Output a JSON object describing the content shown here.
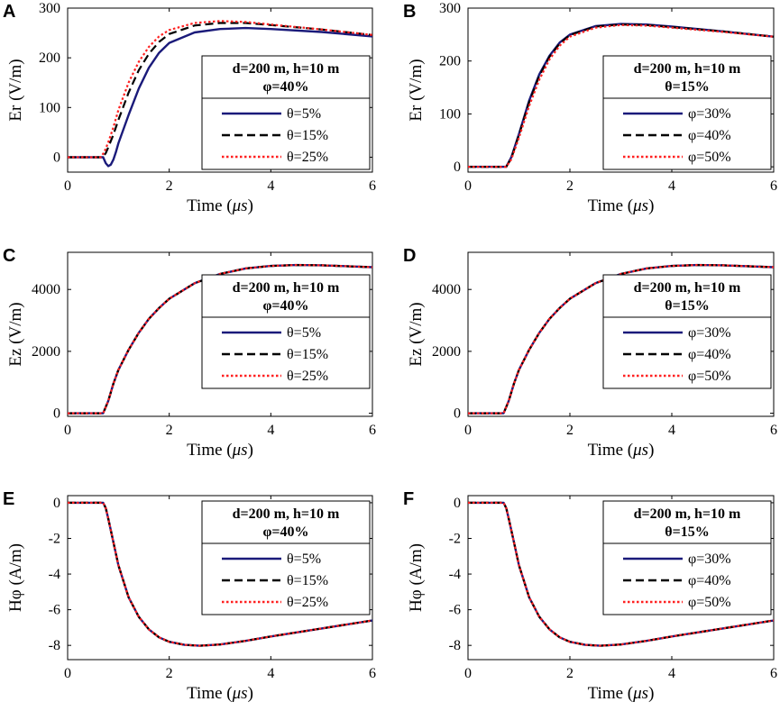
{
  "chart_data": [
    {
      "id": "A",
      "type": "line",
      "panel_label": "A",
      "xlabel_pre": "Time (",
      "xlabel_mu": "μs",
      "xlabel_post": ")",
      "ylabel": "Er (V/m)",
      "xlim": [
        0,
        6
      ],
      "ylim": [
        -30,
        300
      ],
      "xticks": [
        0,
        2,
        4,
        6
      ],
      "yticks": [
        0,
        100,
        200,
        300
      ],
      "legend": {
        "title1": "d=200 m, h=10 m",
        "title2": "φ=40%",
        "position": "right-middle"
      },
      "series": [
        {
          "name": "θ=5%",
          "color": "#1a1a7a",
          "dash": "solid",
          "x": [
            0,
            0.7,
            0.75,
            0.8,
            0.85,
            0.9,
            0.95,
            1.0,
            1.2,
            1.4,
            1.6,
            1.8,
            2.0,
            2.5,
            3.0,
            3.5,
            4.0,
            5.0,
            6.0
          ],
          "y": [
            0,
            0,
            -12,
            -18,
            -15,
            -5,
            10,
            28,
            85,
            138,
            180,
            210,
            230,
            251,
            258,
            260,
            258,
            252,
            243
          ]
        },
        {
          "name": "θ=15%",
          "color": "#000000",
          "dash": "dash",
          "x": [
            0,
            0.68,
            0.75,
            0.8,
            0.9,
            1.0,
            1.2,
            1.4,
            1.6,
            1.8,
            2.0,
            2.5,
            3.0,
            3.5,
            4.0,
            5.0,
            6.0
          ],
          "y": [
            0,
            0,
            8,
            20,
            45,
            75,
            130,
            175,
            208,
            232,
            248,
            265,
            270,
            270,
            266,
            257,
            246
          ]
        },
        {
          "name": "θ=25%",
          "color": "#ff2020",
          "dash": "dot",
          "x": [
            0,
            0.65,
            0.72,
            0.8,
            0.9,
            1.0,
            1.2,
            1.4,
            1.6,
            1.8,
            2.0,
            2.5,
            3.0,
            3.5,
            4.0,
            5.0,
            6.0
          ],
          "y": [
            0,
            0,
            10,
            30,
            60,
            95,
            150,
            192,
            222,
            243,
            256,
            270,
            274,
            272,
            267,
            257,
            246
          ]
        }
      ]
    },
    {
      "id": "B",
      "type": "line",
      "panel_label": "B",
      "xlabel_pre": "Time (",
      "xlabel_mu": "μs",
      "xlabel_post": ")",
      "ylabel": "Er (V/m)",
      "xlim": [
        0,
        6
      ],
      "ylim": [
        -10,
        300
      ],
      "xticks": [
        0,
        2,
        4,
        6
      ],
      "yticks": [
        0,
        100,
        200,
        300
      ],
      "legend": {
        "title1": "d=200 m, h=10 m",
        "title2": "θ=15%",
        "position": "right-middle"
      },
      "series": [
        {
          "name": "φ=30%",
          "color": "#1a1a7a",
          "dash": "solid",
          "x": [
            0,
            0.75,
            0.85,
            1.0,
            1.2,
            1.4,
            1.6,
            1.8,
            2.0,
            2.5,
            3.0,
            3.5,
            4.0,
            5.0,
            6.0
          ],
          "y": [
            0,
            0,
            18,
            62,
            125,
            175,
            210,
            235,
            250,
            266,
            270,
            269,
            265,
            256,
            246
          ]
        },
        {
          "name": "φ=40%",
          "color": "#000000",
          "dash": "dash",
          "x": [
            0,
            0.75,
            0.85,
            1.0,
            1.2,
            1.4,
            1.6,
            1.8,
            2.0,
            2.5,
            3.0,
            3.5,
            4.0,
            5.0,
            6.0
          ],
          "y": [
            0,
            0,
            16,
            60,
            122,
            172,
            208,
            233,
            249,
            265,
            269,
            268,
            264,
            256,
            246
          ]
        },
        {
          "name": "φ=50%",
          "color": "#ff2020",
          "dash": "dot",
          "x": [
            0,
            0.75,
            0.85,
            1.0,
            1.2,
            1.4,
            1.6,
            1.8,
            2.0,
            2.5,
            3.0,
            3.5,
            4.0,
            5.0,
            6.0
          ],
          "y": [
            0,
            0,
            14,
            55,
            115,
            165,
            203,
            229,
            246,
            263,
            268,
            267,
            263,
            255,
            246
          ]
        }
      ]
    },
    {
      "id": "C",
      "type": "line",
      "panel_label": "C",
      "xlabel_pre": "Time (",
      "xlabel_mu": "μs",
      "xlabel_post": ")",
      "ylabel": "Ez (V/m)",
      "xlim": [
        0,
        6
      ],
      "ylim": [
        -100,
        5200
      ],
      "xticks": [
        0,
        2,
        4,
        6
      ],
      "yticks": [
        0,
        2000,
        4000
      ],
      "legend": {
        "title1": "d=200 m, h=10 m",
        "title2": "φ=40%",
        "position": "right-middle"
      },
      "series": [
        {
          "name": "θ=5%",
          "color": "#1a1a7a",
          "dash": "solid",
          "x": [
            0,
            0.7,
            0.8,
            0.9,
            1.0,
            1.2,
            1.4,
            1.6,
            1.8,
            2.0,
            2.5,
            3.0,
            3.5,
            4.0,
            4.5,
            5.0,
            6.0
          ],
          "y": [
            0,
            0,
            400,
            950,
            1400,
            2050,
            2600,
            3050,
            3400,
            3700,
            4200,
            4500,
            4680,
            4760,
            4790,
            4780,
            4720
          ]
        },
        {
          "name": "θ=15%",
          "color": "#000000",
          "dash": "dash",
          "x": [
            0,
            0.7,
            0.8,
            0.9,
            1.0,
            1.2,
            1.4,
            1.6,
            1.8,
            2.0,
            2.5,
            3.0,
            3.5,
            4.0,
            4.5,
            5.0,
            6.0
          ],
          "y": [
            0,
            0,
            400,
            950,
            1400,
            2050,
            2600,
            3050,
            3400,
            3700,
            4200,
            4500,
            4680,
            4760,
            4790,
            4780,
            4720
          ]
        },
        {
          "name": "θ=25%",
          "color": "#ff2020",
          "dash": "dot",
          "x": [
            0,
            0.7,
            0.8,
            0.9,
            1.0,
            1.2,
            1.4,
            1.6,
            1.8,
            2.0,
            2.5,
            3.0,
            3.5,
            4.0,
            4.5,
            5.0,
            6.0
          ],
          "y": [
            0,
            0,
            400,
            950,
            1400,
            2050,
            2600,
            3050,
            3400,
            3700,
            4200,
            4500,
            4680,
            4760,
            4790,
            4780,
            4720
          ]
        }
      ]
    },
    {
      "id": "D",
      "type": "line",
      "panel_label": "D",
      "xlabel_pre": "Time (",
      "xlabel_mu": "μs",
      "xlabel_post": ")",
      "ylabel": "Ez (V/m)",
      "xlim": [
        0,
        6
      ],
      "ylim": [
        -100,
        5200
      ],
      "xticks": [
        0,
        2,
        4,
        6
      ],
      "yticks": [
        0,
        2000,
        4000
      ],
      "legend": {
        "title1": "d=200 m, h=10 m",
        "title2": "θ=15%",
        "position": "right-middle"
      },
      "series": [
        {
          "name": "φ=30%",
          "color": "#1a1a7a",
          "dash": "solid",
          "x": [
            0,
            0.7,
            0.8,
            0.9,
            1.0,
            1.2,
            1.4,
            1.6,
            1.8,
            2.0,
            2.5,
            3.0,
            3.5,
            4.0,
            4.5,
            5.0,
            6.0
          ],
          "y": [
            0,
            0,
            400,
            950,
            1400,
            2050,
            2600,
            3050,
            3400,
            3700,
            4200,
            4500,
            4680,
            4760,
            4790,
            4780,
            4720
          ]
        },
        {
          "name": "φ=40%",
          "color": "#000000",
          "dash": "dash",
          "x": [
            0,
            0.7,
            0.8,
            0.9,
            1.0,
            1.2,
            1.4,
            1.6,
            1.8,
            2.0,
            2.5,
            3.0,
            3.5,
            4.0,
            4.5,
            5.0,
            6.0
          ],
          "y": [
            0,
            0,
            400,
            950,
            1400,
            2050,
            2600,
            3050,
            3400,
            3700,
            4200,
            4500,
            4680,
            4760,
            4790,
            4780,
            4720
          ]
        },
        {
          "name": "φ=50%",
          "color": "#ff2020",
          "dash": "dot",
          "x": [
            0,
            0.7,
            0.8,
            0.9,
            1.0,
            1.2,
            1.4,
            1.6,
            1.8,
            2.0,
            2.5,
            3.0,
            3.5,
            4.0,
            4.5,
            5.0,
            6.0
          ],
          "y": [
            0,
            0,
            400,
            950,
            1400,
            2050,
            2600,
            3050,
            3400,
            3700,
            4200,
            4500,
            4680,
            4760,
            4790,
            4780,
            4720
          ]
        }
      ]
    },
    {
      "id": "E",
      "type": "line",
      "panel_label": "E",
      "xlabel_pre": "Time (",
      "xlabel_mu": "μs",
      "xlabel_post": ")",
      "ylabel": "Hφ (A/m)",
      "xlim": [
        0,
        6
      ],
      "ylim": [
        -8.8,
        0.4
      ],
      "xticks": [
        0,
        2,
        4,
        6
      ],
      "yticks": [
        0,
        -2,
        -4,
        -6,
        -8
      ],
      "legend": {
        "title1": "d=200 m, h=10 m",
        "title2": "φ=40%",
        "position": "right-top"
      },
      "series": [
        {
          "name": "θ=5%",
          "color": "#1a1a7a",
          "dash": "solid",
          "x": [
            0,
            0.7,
            0.75,
            0.8,
            0.9,
            1.0,
            1.2,
            1.4,
            1.6,
            1.8,
            2.0,
            2.3,
            2.6,
            3.0,
            3.5,
            4.0,
            5.0,
            6.0
          ],
          "y": [
            0,
            0,
            -0.3,
            -0.9,
            -2.2,
            -3.5,
            -5.3,
            -6.4,
            -7.1,
            -7.55,
            -7.8,
            -7.97,
            -8.02,
            -7.95,
            -7.75,
            -7.5,
            -7.05,
            -6.6
          ]
        },
        {
          "name": "θ=15%",
          "color": "#000000",
          "dash": "dash",
          "x": [
            0,
            0.7,
            0.75,
            0.8,
            0.9,
            1.0,
            1.2,
            1.4,
            1.6,
            1.8,
            2.0,
            2.3,
            2.6,
            3.0,
            3.5,
            4.0,
            5.0,
            6.0
          ],
          "y": [
            0,
            0,
            -0.3,
            -0.9,
            -2.2,
            -3.5,
            -5.3,
            -6.4,
            -7.1,
            -7.55,
            -7.8,
            -7.97,
            -8.02,
            -7.95,
            -7.75,
            -7.5,
            -7.05,
            -6.6
          ]
        },
        {
          "name": "θ=25%",
          "color": "#ff2020",
          "dash": "dot",
          "x": [
            0,
            0.7,
            0.75,
            0.8,
            0.9,
            1.0,
            1.2,
            1.4,
            1.6,
            1.8,
            2.0,
            2.3,
            2.6,
            3.0,
            3.5,
            4.0,
            5.0,
            6.0
          ],
          "y": [
            0,
            0,
            -0.3,
            -0.9,
            -2.2,
            -3.5,
            -5.3,
            -6.4,
            -7.1,
            -7.55,
            -7.8,
            -7.97,
            -8.02,
            -7.95,
            -7.75,
            -7.5,
            -7.05,
            -6.6
          ]
        }
      ]
    },
    {
      "id": "F",
      "type": "line",
      "panel_label": "F",
      "xlabel_pre": "Time (",
      "xlabel_mu": "μs",
      "xlabel_post": ")",
      "ylabel": "Hφ (A/m)",
      "xlim": [
        0,
        6
      ],
      "ylim": [
        -8.8,
        0.4
      ],
      "xticks": [
        0,
        2,
        4,
        6
      ],
      "yticks": [
        0,
        -2,
        -4,
        -6,
        -8
      ],
      "legend": {
        "title1": "d=200 m, h=10 m",
        "title2": "θ=15%",
        "position": "right-top"
      },
      "series": [
        {
          "name": "φ=30%",
          "color": "#1a1a7a",
          "dash": "solid",
          "x": [
            0,
            0.7,
            0.75,
            0.8,
            0.9,
            1.0,
            1.2,
            1.4,
            1.6,
            1.8,
            2.0,
            2.3,
            2.6,
            3.0,
            3.5,
            4.0,
            5.0,
            6.0
          ],
          "y": [
            0,
            0,
            -0.3,
            -0.9,
            -2.2,
            -3.5,
            -5.3,
            -6.4,
            -7.1,
            -7.55,
            -7.8,
            -7.97,
            -8.02,
            -7.95,
            -7.75,
            -7.5,
            -7.05,
            -6.6
          ]
        },
        {
          "name": "φ=40%",
          "color": "#000000",
          "dash": "dash",
          "x": [
            0,
            0.7,
            0.75,
            0.8,
            0.9,
            1.0,
            1.2,
            1.4,
            1.6,
            1.8,
            2.0,
            2.3,
            2.6,
            3.0,
            3.5,
            4.0,
            5.0,
            6.0
          ],
          "y": [
            0,
            0,
            -0.3,
            -0.9,
            -2.2,
            -3.5,
            -5.3,
            -6.4,
            -7.1,
            -7.55,
            -7.8,
            -7.97,
            -8.02,
            -7.95,
            -7.75,
            -7.5,
            -7.05,
            -6.6
          ]
        },
        {
          "name": "φ=50%",
          "color": "#ff2020",
          "dash": "dot",
          "x": [
            0,
            0.7,
            0.75,
            0.8,
            0.9,
            1.0,
            1.2,
            1.4,
            1.6,
            1.8,
            2.0,
            2.3,
            2.6,
            3.0,
            3.5,
            4.0,
            5.0,
            6.0
          ],
          "y": [
            0,
            0,
            -0.3,
            -0.9,
            -2.2,
            -3.5,
            -5.3,
            -6.4,
            -7.1,
            -7.55,
            -7.8,
            -7.97,
            -8.02,
            -7.95,
            -7.75,
            -7.5,
            -7.05,
            -6.6
          ]
        }
      ]
    }
  ]
}
